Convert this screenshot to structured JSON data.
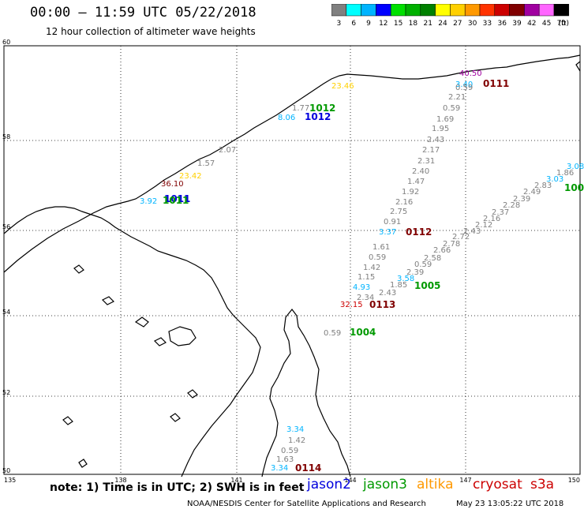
{
  "header": {
    "title": "00:00 – 11:59 UTC 05/22/2018",
    "subtitle": "12 hour collection of altimeter wave heights"
  },
  "legend": {
    "unit_label": "(ft)",
    "bins": [
      {
        "label": "3",
        "color": "#808080"
      },
      {
        "label": "6",
        "color": "#00ffff"
      },
      {
        "label": "9",
        "color": "#00b4ff"
      },
      {
        "label": "12",
        "color": "#0000ff"
      },
      {
        "label": "15",
        "color": "#00e000"
      },
      {
        "label": "18",
        "color": "#00b000"
      },
      {
        "label": "21",
        "color": "#008000"
      },
      {
        "label": "24",
        "color": "#ffff00"
      },
      {
        "label": "27",
        "color": "#ffd000"
      },
      {
        "label": "30",
        "color": "#ff9900"
      },
      {
        "label": "33",
        "color": "#ff3300"
      },
      {
        "label": "36",
        "color": "#cc0000"
      },
      {
        "label": "39",
        "color": "#800000"
      },
      {
        "label": "42",
        "color": "#a000a0"
      },
      {
        "label": "45",
        "color": "#ff66ff"
      },
      {
        "label": "70",
        "color": "#000000"
      }
    ]
  },
  "axes": {
    "lat_labels": [
      "60",
      "58",
      "56",
      "54",
      "52",
      "50"
    ],
    "lon_labels": [
      "135",
      "138",
      "141",
      "144",
      "147",
      "150"
    ]
  },
  "passes": [
    {
      "label": "1012",
      "satellite": "jason3",
      "color": "#009900"
    },
    {
      "label": "1012",
      "satellite": "jason2",
      "color": "#0000dd"
    },
    {
      "label": "1011",
      "satellite": "jason2",
      "color": "#0000dd"
    },
    {
      "label": "1011",
      "satellite": "jason3",
      "color": "#009900"
    },
    {
      "label": "0111",
      "satellite": "cryosat",
      "color": "#800000"
    },
    {
      "label": "0112",
      "satellite": "cryosat",
      "color": "#800000"
    },
    {
      "label": "0113",
      "satellite": "cryosat",
      "color": "#800000"
    },
    {
      "label": "1005",
      "satellite": "jason3",
      "color": "#009900"
    },
    {
      "label": "1004",
      "satellite": "jason3",
      "color": "#009900"
    },
    {
      "label": "100",
      "satellite": "jason3",
      "color": "#009900"
    },
    {
      "label": "0114",
      "satellite": "cryosat",
      "color": "#800000"
    }
  ],
  "wave_values": [
    {
      "v": "1.57",
      "color": "#808080"
    },
    {
      "v": "2.07",
      "color": "#808080"
    },
    {
      "v": "36.10",
      "color": "#800000"
    },
    {
      "v": "23.42",
      "color": "#ffd000"
    },
    {
      "v": "3.92",
      "color": "#00b4ff"
    },
    {
      "v": "8.06",
      "color": "#00b4ff"
    },
    {
      "v": "1.77",
      "color": "#808080"
    },
    {
      "v": "23.46",
      "color": "#ffd000"
    },
    {
      "v": "40.50",
      "color": "#a000a0"
    },
    {
      "v": "3.40",
      "color": "#00b4ff"
    },
    {
      "v": "0.59",
      "color": "#808080"
    },
    {
      "v": "2.21",
      "color": "#808080"
    },
    {
      "v": "0.59",
      "color": "#808080"
    },
    {
      "v": "1.69",
      "color": "#808080"
    },
    {
      "v": "1.95",
      "color": "#808080"
    },
    {
      "v": "2.43",
      "color": "#808080"
    },
    {
      "v": "2.17",
      "color": "#808080"
    },
    {
      "v": "2.31",
      "color": "#808080"
    },
    {
      "v": "2.40",
      "color": "#808080"
    },
    {
      "v": "1.47",
      "color": "#808080"
    },
    {
      "v": "1.92",
      "color": "#808080"
    },
    {
      "v": "2.16",
      "color": "#808080"
    },
    {
      "v": "2.75",
      "color": "#808080"
    },
    {
      "v": "0.91",
      "color": "#808080"
    },
    {
      "v": "3.37",
      "color": "#00b4ff"
    },
    {
      "v": "1.61",
      "color": "#808080"
    },
    {
      "v": "0.59",
      "color": "#808080"
    },
    {
      "v": "1.42",
      "color": "#808080"
    },
    {
      "v": "1.15",
      "color": "#808080"
    },
    {
      "v": "4.93",
      "color": "#00b4ff"
    },
    {
      "v": "32.15",
      "color": "#cc0000"
    },
    {
      "v": "2.34",
      "color": "#808080"
    },
    {
      "v": "2.43",
      "color": "#808080"
    },
    {
      "v": "1.85",
      "color": "#808080"
    },
    {
      "v": "3.58",
      "color": "#00b4ff"
    },
    {
      "v": "2.39",
      "color": "#808080"
    },
    {
      "v": "0.59",
      "color": "#808080"
    },
    {
      "v": "2.58",
      "color": "#808080"
    },
    {
      "v": "2.66",
      "color": "#808080"
    },
    {
      "v": "2.78",
      "color": "#808080"
    },
    {
      "v": "2.72",
      "color": "#808080"
    },
    {
      "v": "2.43",
      "color": "#808080"
    },
    {
      "v": "2.12",
      "color": "#808080"
    },
    {
      "v": "2.16",
      "color": "#808080"
    },
    {
      "v": "2.37",
      "color": "#808080"
    },
    {
      "v": "2.28",
      "color": "#808080"
    },
    {
      "v": "2.39",
      "color": "#808080"
    },
    {
      "v": "2.49",
      "color": "#808080"
    },
    {
      "v": "2.83",
      "color": "#808080"
    },
    {
      "v": "3.03",
      "color": "#00b4ff"
    },
    {
      "v": "1.86",
      "color": "#808080"
    },
    {
      "v": "3.08",
      "color": "#00b4ff"
    },
    {
      "v": "0.59",
      "color": "#808080"
    },
    {
      "v": "3.34",
      "color": "#00b4ff"
    },
    {
      "v": "1.42",
      "color": "#808080"
    },
    {
      "v": "0.59",
      "color": "#808080"
    },
    {
      "v": "1.63",
      "color": "#808080"
    },
    {
      "v": "3.34",
      "color": "#00b4ff"
    }
  ],
  "footer": {
    "note": "note: 1) Time is in UTC; 2) SWH is in feet",
    "satellites": [
      {
        "name": "jason2",
        "color": "#0000dd"
      },
      {
        "name": "jason3",
        "color": "#009900"
      },
      {
        "name": "altika",
        "color": "#ff9900"
      },
      {
        "name": "cryosat",
        "color": "#cc0000"
      },
      {
        "name": "s3a",
        "color": "#cc0000"
      }
    ],
    "credit": "NOAA/NESDIS Center for Satellite Applications and Research",
    "timestamp": "May 23 13:05:22 UTC 2018"
  }
}
